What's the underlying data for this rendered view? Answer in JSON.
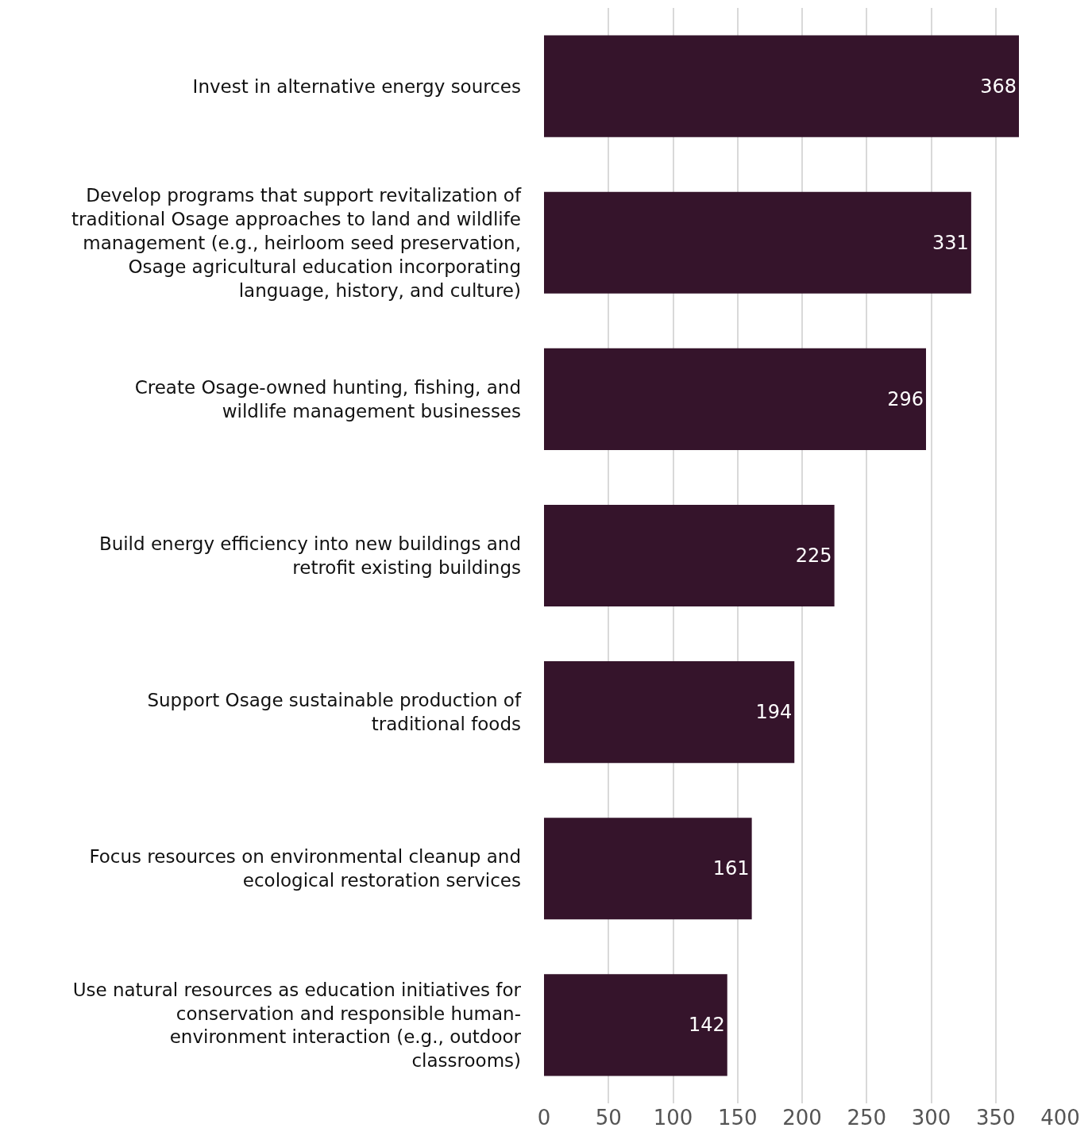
{
  "chart_data": {
    "type": "bar",
    "orientation": "horizontal",
    "categories": [
      "Invest in alternative energy sources",
      "Develop programs that support revitalization of\ntraditional Osage approaches to land and wildlife\nmanagement (e.g., heirloom seed preservation,\nOsage agricultural education incorporating\nlanguage, history, and culture)",
      "Create Osage-owned hunting, fishing, and\nwildlife management businesses",
      "Build energy efficiency into new buildings and\nretrofit existing buildings",
      "Support Osage sustainable production of\ntraditional foods",
      "Focus resources on environmental cleanup and\necological restoration services",
      "Use natural resources as education initiatives for\nconservation and responsible human-\nenvironment interaction (e.g., outdoor\nclassrooms)"
    ],
    "values": [
      368,
      331,
      296,
      225,
      194,
      161,
      142
    ],
    "color": "#35142b",
    "xlim": [
      0,
      400
    ],
    "xticks": [
      0,
      50,
      100,
      150,
      200,
      250,
      300,
      350,
      400
    ],
    "grid": "x",
    "data_labels": true
  }
}
